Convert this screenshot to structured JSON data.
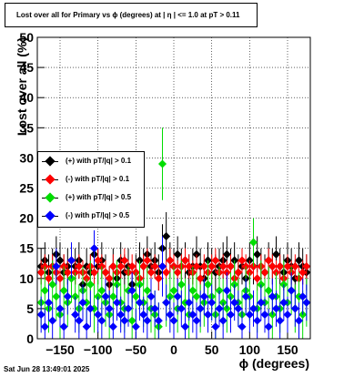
{
  "title": "Lost over all for Primary vs ϕ (degrees) at |  η  | <= 1.0 at pT > 0.11",
  "timestamp": "Sat Jun 28 13:49:01 2025",
  "chart_data": {
    "type": "scatter",
    "xlabel": "ϕ (degrees)",
    "ylabel": "Lost over all (%)",
    "xlim": [
      -180,
      180
    ],
    "ylim": [
      0,
      50
    ],
    "x_ticks": [
      -150,
      -100,
      -50,
      0,
      50,
      100,
      150
    ],
    "x_tick_labels": [
      "−150",
      "−100",
      "−50",
      "0",
      "50",
      "100",
      "150"
    ],
    "y_ticks": [
      0,
      5,
      10,
      15,
      20,
      25,
      30,
      35,
      40,
      45,
      50
    ],
    "y_tick_labels": [
      "0",
      "5",
      "10",
      "15",
      "20",
      "25",
      "30",
      "35",
      "40",
      "45",
      "50"
    ],
    "grid": true,
    "legend_position": "left-middle",
    "series": [
      {
        "name": "(+) with pT/|q| > 0.1",
        "color": "#000000",
        "x": [
          -175,
          -170,
          -165,
          -160,
          -155,
          -150,
          -145,
          -140,
          -135,
          -130,
          -125,
          -120,
          -115,
          -110,
          -105,
          -100,
          -95,
          -90,
          -85,
          -80,
          -75,
          -70,
          -65,
          -60,
          -55,
          -50,
          -45,
          -40,
          -35,
          -30,
          -25,
          -20,
          -15,
          -10,
          -5,
          0,
          5,
          10,
          15,
          20,
          25,
          30,
          35,
          40,
          45,
          50,
          55,
          60,
          65,
          70,
          75,
          80,
          85,
          90,
          95,
          100,
          105,
          110,
          115,
          120,
          125,
          130,
          135,
          140,
          145,
          150,
          155,
          160,
          165,
          170,
          175
        ],
        "y": [
          12,
          13,
          11,
          12,
          14,
          13,
          11,
          12,
          10,
          12,
          13,
          9,
          12,
          11,
          14,
          12,
          13,
          11,
          9,
          12,
          10,
          13,
          11,
          12,
          9,
          11,
          13,
          12,
          14,
          12,
          13,
          11,
          15,
          17,
          13,
          12,
          14,
          12,
          13,
          11,
          12,
          14,
          12,
          10,
          13,
          12,
          11,
          12,
          13,
          14,
          12,
          13,
          11,
          12,
          10,
          13,
          12,
          14,
          12,
          11,
          13,
          12,
          14,
          12,
          11,
          13,
          12,
          10,
          13,
          12,
          11
        ],
        "err": [
          3,
          3,
          3,
          3,
          3,
          3,
          3,
          3,
          3,
          3,
          3,
          3,
          3,
          3,
          3,
          3,
          3,
          3,
          3,
          3,
          3,
          3,
          3,
          3,
          3,
          3,
          3,
          3,
          3,
          3,
          3,
          3,
          4,
          4,
          3,
          3,
          3,
          3,
          3,
          3,
          3,
          3,
          3,
          3,
          3,
          3,
          3,
          3,
          3,
          3,
          3,
          3,
          3,
          3,
          3,
          3,
          3,
          3,
          3,
          3,
          3,
          3,
          3,
          3,
          3,
          3,
          3,
          3,
          3,
          3,
          3
        ]
      },
      {
        "name": "(-) with pT/|q| > 0.1",
        "color": "#ff0000",
        "x": [
          -175,
          -170,
          -165,
          -160,
          -155,
          -150,
          -145,
          -140,
          -135,
          -130,
          -125,
          -120,
          -115,
          -110,
          -105,
          -100,
          -95,
          -90,
          -85,
          -80,
          -75,
          -70,
          -65,
          -60,
          -55,
          -50,
          -45,
          -40,
          -35,
          -30,
          -25,
          -20,
          -15,
          -10,
          -5,
          0,
          5,
          10,
          15,
          20,
          25,
          30,
          35,
          40,
          45,
          50,
          55,
          60,
          65,
          70,
          75,
          80,
          85,
          90,
          95,
          100,
          105,
          110,
          115,
          120,
          125,
          130,
          135,
          140,
          145,
          150,
          155,
          160,
          165,
          170,
          175
        ],
        "y": [
          11,
          12,
          10,
          12,
          11,
          10,
          12,
          11,
          13,
          11,
          12,
          11,
          10,
          12,
          11,
          13,
          12,
          11,
          10,
          12,
          11,
          12,
          13,
          11,
          12,
          11,
          10,
          12,
          13,
          11,
          12,
          10,
          12,
          11,
          13,
          12,
          11,
          12,
          13,
          12,
          11,
          12,
          10,
          12,
          11,
          12,
          13,
          11,
          12,
          11,
          12,
          10,
          11,
          13,
          12,
          11,
          12,
          10,
          12,
          11,
          13,
          12,
          11,
          12,
          10,
          12,
          11,
          12,
          10,
          11,
          12
        ],
        "err": [
          2,
          2,
          2,
          2,
          2,
          2,
          2,
          2,
          2,
          2,
          2,
          2,
          2,
          2,
          2,
          2,
          2,
          2,
          2,
          2,
          2,
          2,
          2,
          2,
          2,
          2,
          2,
          2,
          2,
          2,
          2,
          2,
          2,
          2,
          2,
          2,
          2,
          2,
          2,
          2,
          2,
          2,
          2,
          2,
          2,
          2,
          2,
          2,
          2,
          2,
          2,
          2,
          2,
          2,
          2,
          2,
          2,
          2,
          2,
          2,
          2,
          2,
          2,
          2,
          2,
          2,
          2,
          2,
          2,
          2,
          2
        ]
      },
      {
        "name": "(+) with pT/|q| > 0.5",
        "color": "#00dd00",
        "x": [
          -175,
          -170,
          -165,
          -160,
          -155,
          -150,
          -145,
          -140,
          -135,
          -130,
          -125,
          -120,
          -115,
          -110,
          -105,
          -100,
          -95,
          -90,
          -85,
          -80,
          -75,
          -70,
          -65,
          -60,
          -55,
          -50,
          -45,
          -40,
          -35,
          -30,
          -25,
          -20,
          -15,
          -10,
          -5,
          0,
          5,
          10,
          15,
          20,
          25,
          30,
          35,
          40,
          45,
          50,
          55,
          60,
          65,
          70,
          75,
          80,
          85,
          90,
          95,
          100,
          105,
          110,
          115,
          120,
          125,
          130,
          135,
          140,
          145,
          150,
          155,
          160,
          165,
          170,
          175
        ],
        "y": [
          6,
          8,
          5,
          9,
          7,
          4,
          8,
          6,
          10,
          7,
          5,
          8,
          6,
          9,
          5,
          7,
          8,
          6,
          4,
          7,
          9,
          6,
          5,
          8,
          3,
          7,
          9,
          6,
          8,
          5,
          4,
          2,
          29,
          6,
          7,
          8,
          5,
          9,
          6,
          4,
          8,
          7,
          5,
          6,
          9,
          7,
          4,
          8,
          6,
          5,
          7,
          9,
          6,
          4,
          8,
          7,
          16,
          5,
          9,
          6,
          8,
          4,
          7,
          5,
          9,
          6,
          8,
          5,
          7,
          4,
          6
        ],
        "err": [
          4,
          4,
          4,
          4,
          4,
          4,
          4,
          4,
          4,
          4,
          4,
          4,
          4,
          4,
          4,
          4,
          4,
          4,
          4,
          4,
          4,
          4,
          4,
          4,
          4,
          4,
          4,
          4,
          4,
          4,
          4,
          4,
          6,
          4,
          4,
          4,
          4,
          4,
          4,
          4,
          4,
          4,
          4,
          4,
          4,
          4,
          4,
          4,
          4,
          4,
          4,
          4,
          4,
          4,
          4,
          4,
          4,
          4,
          4,
          4,
          4,
          4,
          4,
          4,
          4,
          4,
          4,
          4,
          4,
          4,
          4
        ]
      },
      {
        "name": "(-) with pT/|q| > 0.5",
        "color": "#0000ff",
        "x": [
          -175,
          -170,
          -165,
          -160,
          -155,
          -150,
          -145,
          -140,
          -135,
          -130,
          -125,
          -120,
          -115,
          -110,
          -105,
          -100,
          -95,
          -90,
          -85,
          -80,
          -75,
          -70,
          -65,
          -60,
          -55,
          -50,
          -45,
          -40,
          -35,
          -30,
          -25,
          -20,
          -15,
          -10,
          -5,
          0,
          5,
          10,
          15,
          20,
          25,
          30,
          35,
          40,
          45,
          50,
          55,
          60,
          65,
          70,
          75,
          80,
          85,
          90,
          95,
          100,
          105,
          110,
          115,
          120,
          125,
          130,
          135,
          140,
          145,
          150,
          155,
          160,
          165,
          170,
          175
        ],
        "y": [
          4,
          2,
          6,
          3,
          12,
          5,
          2,
          7,
          13,
          4,
          3,
          6,
          2,
          5,
          15,
          4,
          3,
          7,
          5,
          2,
          6,
          4,
          3,
          5,
          8,
          2,
          6,
          4,
          3,
          7,
          5,
          3,
          12,
          6,
          4,
          3,
          7,
          5,
          2,
          6,
          4,
          3,
          5,
          7,
          4,
          6,
          2,
          5,
          3,
          8,
          4,
          6,
          5,
          2,
          7,
          4,
          5,
          3,
          6,
          4,
          2,
          7,
          5,
          3,
          6,
          4,
          8,
          5,
          3,
          7,
          6
        ],
        "err": [
          3,
          3,
          3,
          3,
          3,
          3,
          3,
          3,
          3,
          3,
          3,
          3,
          3,
          3,
          3,
          3,
          3,
          3,
          3,
          3,
          3,
          3,
          3,
          3,
          3,
          3,
          3,
          3,
          3,
          3,
          3,
          3,
          5,
          3,
          3,
          3,
          3,
          3,
          3,
          3,
          3,
          3,
          3,
          3,
          3,
          3,
          3,
          3,
          3,
          3,
          3,
          3,
          3,
          3,
          3,
          3,
          3,
          3,
          3,
          3,
          3,
          3,
          3,
          3,
          3,
          3,
          3,
          3,
          3,
          3,
          3
        ]
      }
    ]
  }
}
